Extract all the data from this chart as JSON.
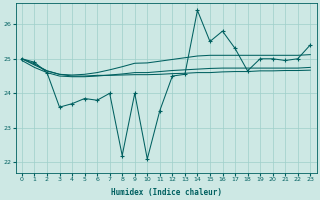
{
  "xlabel": "Humidex (Indice chaleur)",
  "background_color": "#cde8e4",
  "grid_color": "#9ecfca",
  "line_color": "#006060",
  "xlim": [
    -0.5,
    23.5
  ],
  "ylim": [
    21.7,
    26.6
  ],
  "yticks": [
    22,
    23,
    24,
    25,
    26
  ],
  "xticks": [
    0,
    1,
    2,
    3,
    4,
    5,
    6,
    7,
    8,
    9,
    10,
    11,
    12,
    13,
    14,
    15,
    16,
    17,
    18,
    19,
    20,
    21,
    22,
    23
  ],
  "spiky": [
    25.0,
    24.9,
    24.6,
    23.6,
    23.7,
    23.85,
    23.8,
    24.0,
    22.2,
    24.0,
    22.1,
    23.5,
    24.5,
    24.55,
    26.4,
    25.5,
    25.8,
    25.3,
    24.65,
    25.0,
    25.0,
    24.95,
    25.0,
    25.4
  ],
  "smooth1": [
    25.0,
    24.85,
    24.65,
    24.55,
    24.5,
    24.5,
    24.52,
    24.52,
    24.53,
    24.54,
    24.54,
    24.55,
    24.57,
    24.58,
    24.6,
    24.6,
    24.62,
    24.63,
    24.63,
    24.65,
    24.65,
    24.66,
    24.66,
    24.67
  ],
  "smooth2": [
    24.95,
    24.75,
    24.6,
    24.5,
    24.48,
    24.48,
    24.5,
    24.53,
    24.56,
    24.6,
    24.6,
    24.63,
    24.66,
    24.68,
    24.7,
    24.72,
    24.73,
    24.73,
    24.73,
    24.73,
    24.73,
    24.73,
    24.73,
    24.75
  ],
  "trend": [
    25.0,
    24.82,
    24.65,
    24.55,
    24.53,
    24.55,
    24.6,
    24.68,
    24.77,
    24.87,
    24.88,
    24.93,
    24.98,
    25.03,
    25.08,
    25.1,
    25.1,
    25.1,
    25.1,
    25.1,
    25.1,
    25.1,
    25.1,
    25.12
  ]
}
